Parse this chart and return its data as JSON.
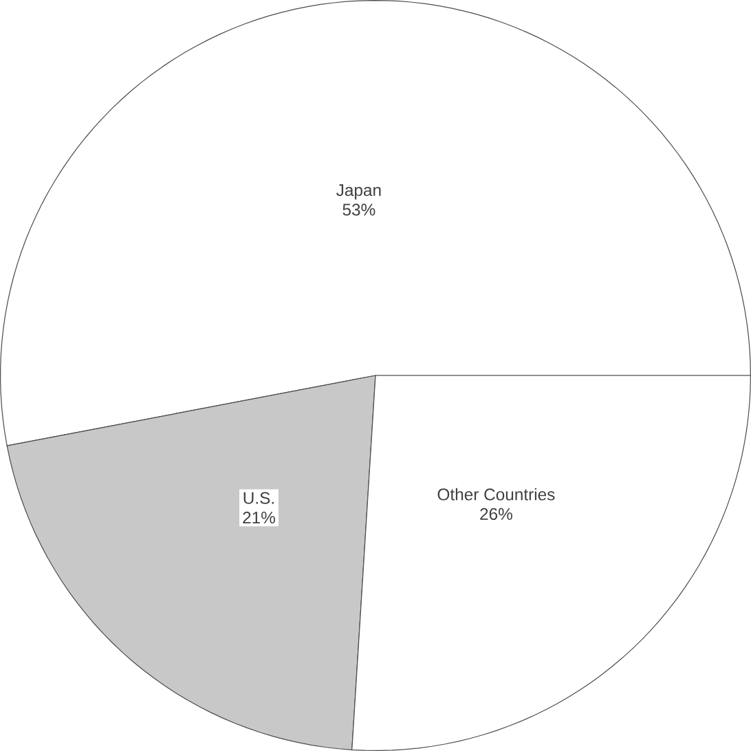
{
  "chart_data": {
    "type": "pie",
    "categories": [
      "Japan",
      "U.S.",
      "Other Countries"
    ],
    "values": [
      53,
      21,
      26
    ],
    "colors": [
      "#ffffff",
      "#c8c8c8",
      "#ffffff"
    ],
    "value_labels": [
      "53%",
      "21%",
      "26%"
    ]
  }
}
